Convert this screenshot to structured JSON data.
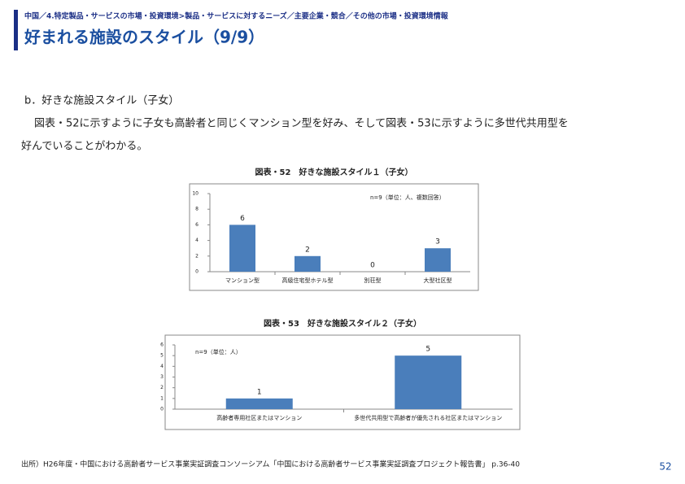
{
  "header": {
    "breadcrumb": "中国／4.特定製品・サービスの市場・投資環境>製品・サービスに対するニーズ／主要企業・競合／その他の市場・投資環境情報",
    "title": "好まれる施設のスタイル（9/9）"
  },
  "body": {
    "heading": "b．好きな施設スタイル（子女）",
    "paragraph_line1": "図表・52に示すように子女も高齢者と同じくマンション型を好み、そして図表・53に示すように多世代共用型を",
    "paragraph_line2": "好んでいることがわかる。"
  },
  "figures": [
    {
      "title": "図表・52　好きな施設スタイル１（子女）",
      "annotation": "n=9（単位：人、複数回答）",
      "categories": [
        "マンション型",
        "高級住宅型ホテル型",
        "別荘型",
        "大型社区型"
      ],
      "values": [
        6,
        2,
        0,
        3
      ],
      "ylim": [
        0,
        10
      ],
      "yticks": [
        0,
        2,
        4,
        6,
        8,
        10
      ],
      "color": "#4a7ebb"
    },
    {
      "title": "図表・53　好きな施設スタイル２（子女）",
      "annotation": "n=9（単位：人）",
      "categories": [
        "高齢者専用社区またはマンション",
        "多世代共用型で高齢者が優先される社区またはマンション"
      ],
      "values": [
        1,
        5
      ],
      "ylim": [
        0,
        6
      ],
      "yticks": [
        0,
        1,
        2,
        3,
        4,
        5,
        6
      ],
      "color": "#4a7ebb"
    }
  ],
  "footer": {
    "source": "出所）H26年度・中国における高齢者サービス事業実証調査コンソーシアム「中国における高齢者サービス事業実証調査プロジェクト報告書」 p.36-40",
    "page": "52"
  }
}
